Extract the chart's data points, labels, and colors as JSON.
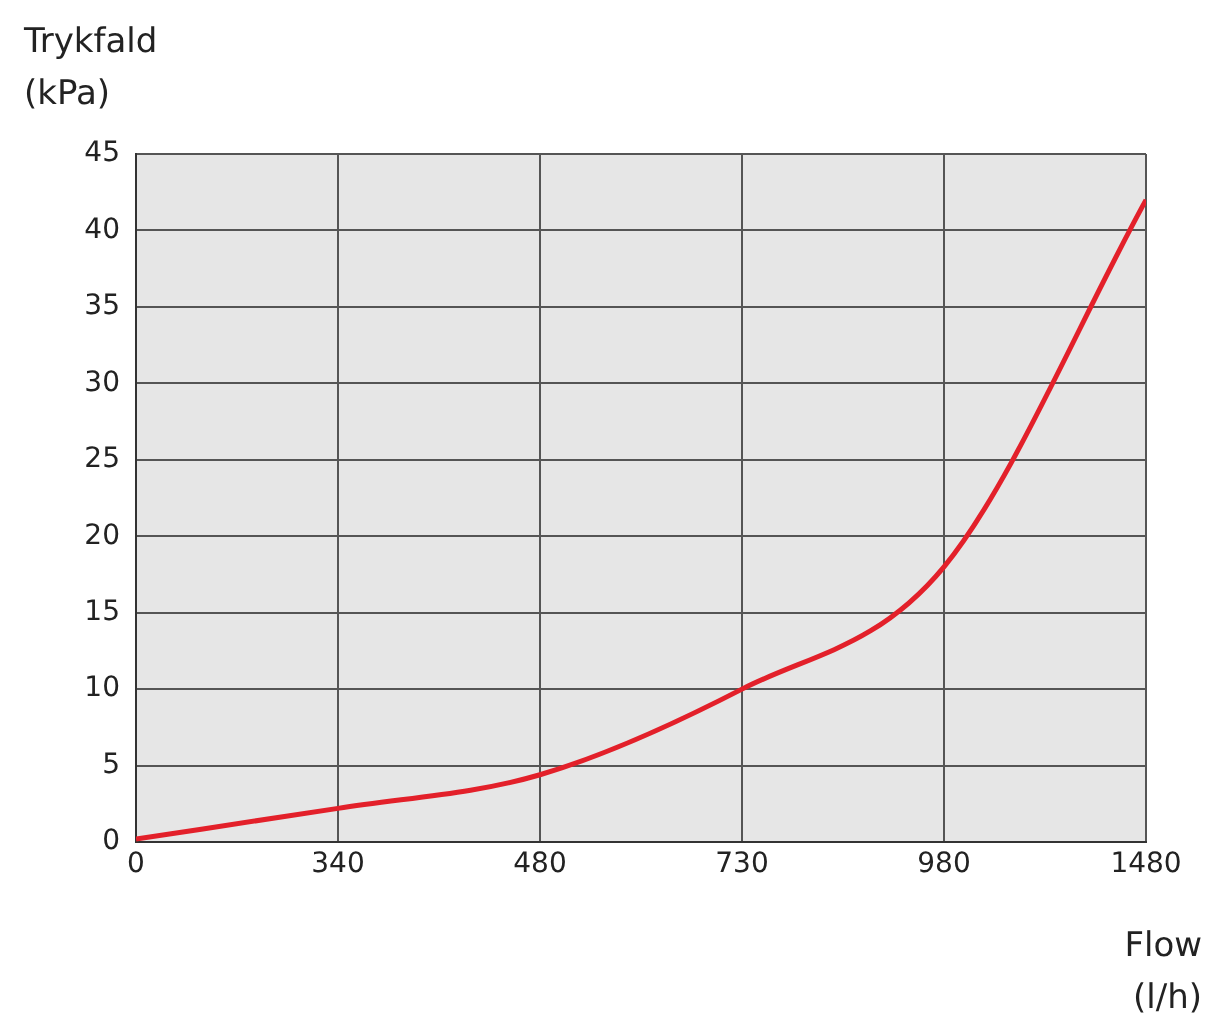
{
  "chart_data": {
    "type": "line",
    "xlabel": "Flow (l/h)",
    "ylabel": "Trykfald (kPa)",
    "categories": [
      "0",
      "340",
      "480",
      "730",
      "980",
      "1480"
    ],
    "series": [
      {
        "color": "#e3202a",
        "values": [
          0.2,
          2.2,
          4.4,
          10,
          18,
          42
        ]
      }
    ],
    "ylim": [
      0,
      45
    ],
    "yticks": [
      0,
      5,
      10,
      15,
      20,
      25,
      30,
      35,
      40,
      45
    ],
    "grid": true,
    "legend": false,
    "marker": "none",
    "line_style": "solid"
  }
}
